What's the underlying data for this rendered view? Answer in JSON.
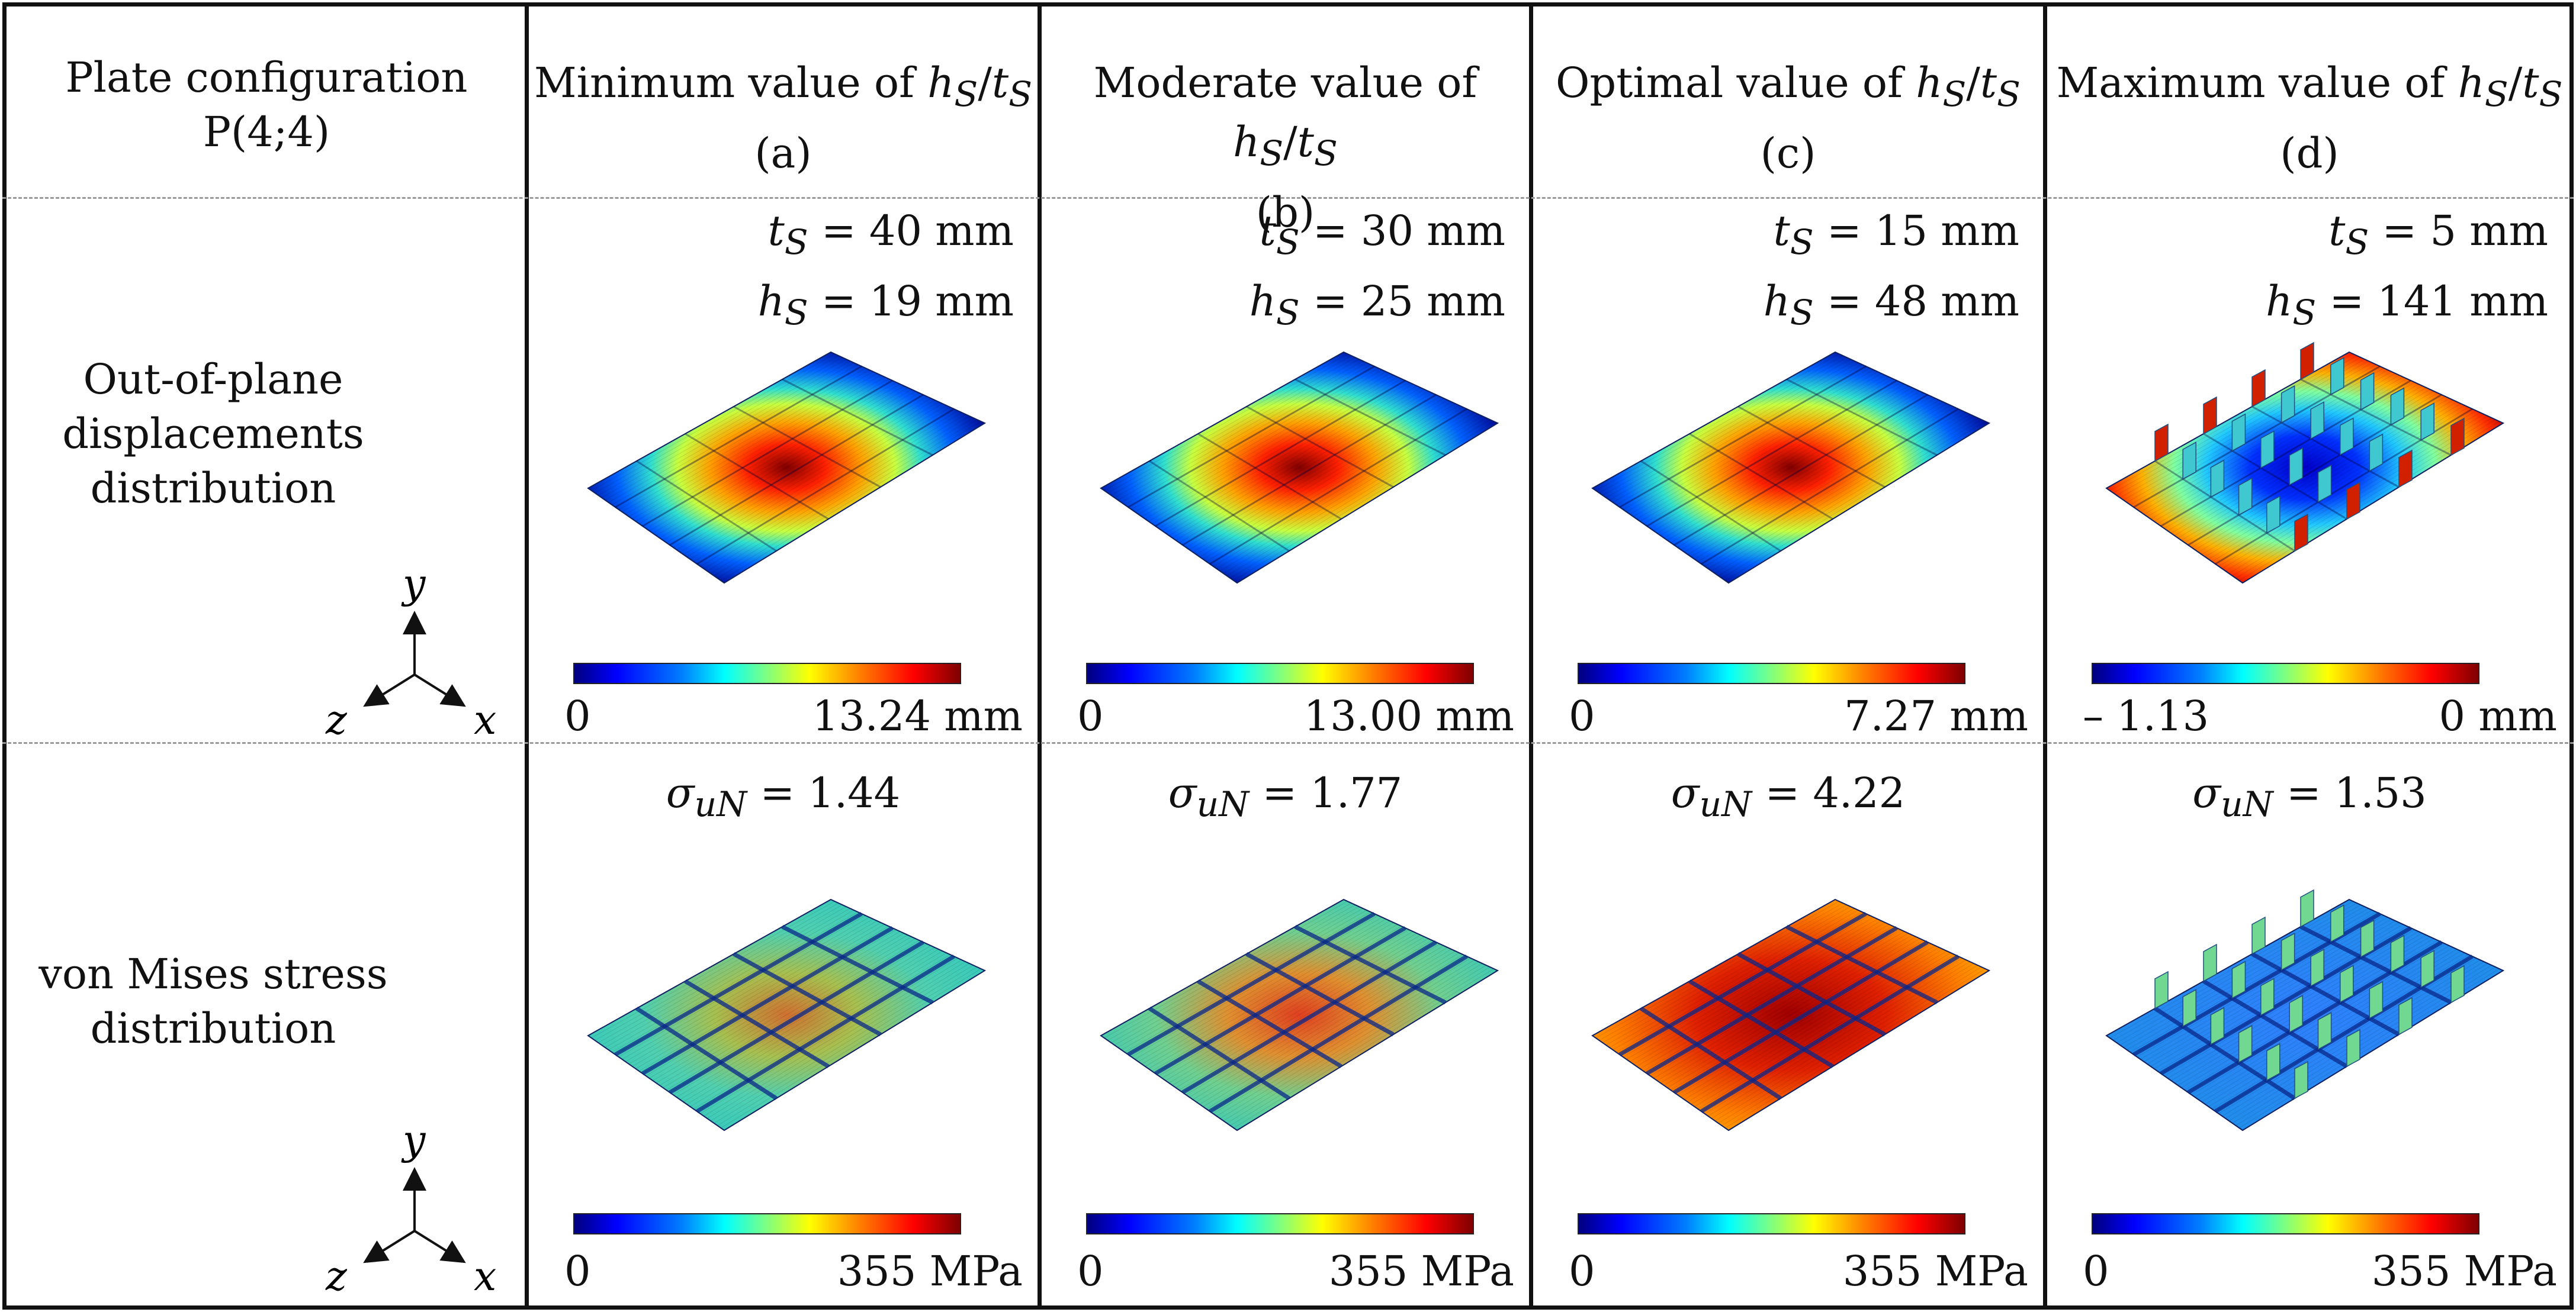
{
  "row_header": {
    "config_line1": "Plate configuration",
    "config_line2": "P(4;4)",
    "displacement_line1": "Out-of-plane",
    "displacement_line2": "displacements",
    "displacement_line3": "distribution",
    "stress_line1": "von Mises stress",
    "stress_line2": "distribution"
  },
  "axes_labels": {
    "y": "y",
    "z": "z",
    "x": "x"
  },
  "columns": [
    {
      "title_prefix": "Minimum value of ",
      "label": "(a)",
      "ts": "40 mm",
      "hs": "19 mm",
      "disp_min": "0",
      "disp_max": "13.24 mm",
      "sigma": "1.44",
      "stress_min": "0",
      "stress_max": "355 MPa"
    },
    {
      "title_prefix": "Moderate value of ",
      "label": "(b)",
      "ts": "30 mm",
      "hs": "25 mm",
      "disp_min": "0",
      "disp_max": "13.00 mm",
      "sigma": "1.77",
      "stress_min": "0",
      "stress_max": "355 MPa"
    },
    {
      "title_prefix": "Optimal value of ",
      "label": "(c)",
      "ts": "15 mm",
      "hs": "48 mm",
      "disp_min": "0",
      "disp_max": "7.27 mm",
      "sigma": "4.22",
      "stress_min": "0",
      "stress_max": "355 MPa"
    },
    {
      "title_prefix": "Maximum value of ",
      "label": "(d)",
      "ts": "5 mm",
      "hs": "141 mm",
      "disp_min": "– 1.13",
      "disp_max": "0 mm",
      "sigma": "1.53",
      "stress_min": "0",
      "stress_max": "355 MPa"
    }
  ],
  "symbols": {
    "h": "h",
    "s": "S",
    "t": "t",
    "slash": "/",
    "eq": " = ",
    "sigma": "σ",
    "uN": "uN"
  },
  "colors": {
    "frame": "#111111",
    "dashed": "#9a9a9a"
  }
}
